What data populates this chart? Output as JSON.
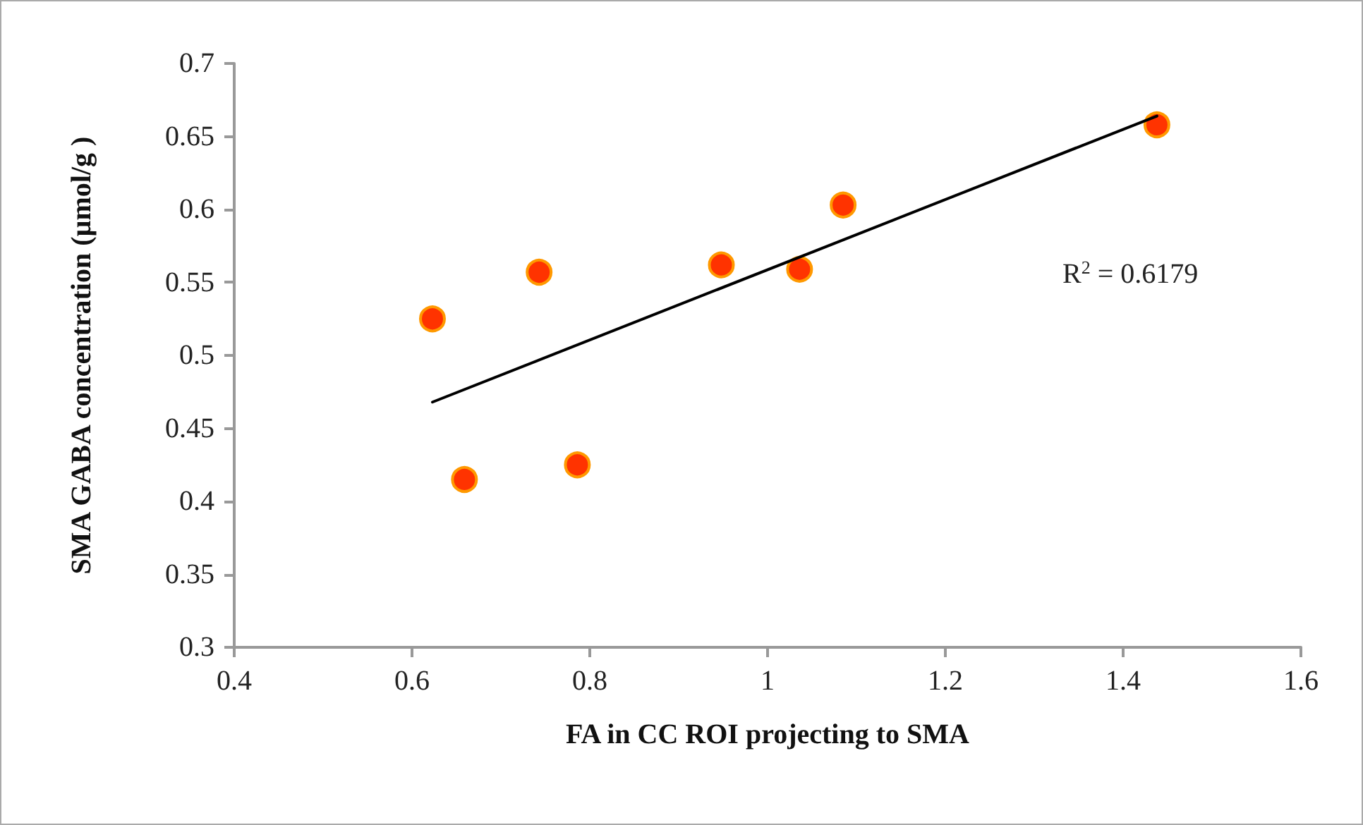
{
  "chart_data": {
    "type": "scatter",
    "xlabel": "FA in CC ROI projecting to SMA",
    "ylabel": "SMA GABA concentration (µmol/g )",
    "annotations": [
      "R$^{2}$ = 0.6179"
    ],
    "xlim": [
      0.4,
      1.6
    ],
    "xticks": [
      0.4,
      0.6,
      0.8,
      1,
      1.2,
      1.4,
      1.6
    ],
    "ylim": [
      0.3,
      0.7
    ],
    "yticks": [
      0.3,
      0.35,
      0.4,
      0.45,
      0.5,
      0.55,
      0.6,
      0.65,
      0.7
    ],
    "grid": false,
    "marker": "circle",
    "series": [
      {
        "color": "#ff3300",
        "x": [
          0.623,
          0.659,
          0.743,
          0.786,
          0.948,
          1.036,
          1.085,
          1.438
        ],
        "values": [
          0.525,
          0.415,
          0.557,
          0.425,
          0.562,
          0.559,
          0.603,
          0.658
        ]
      },
      {
        "type": "line",
        "color": "#000000",
        "marker": "none",
        "line_style": "solid",
        "x": [
          0.623,
          1.438
        ],
        "values": [
          0.468,
          0.664
        ]
      }
    ]
  }
}
